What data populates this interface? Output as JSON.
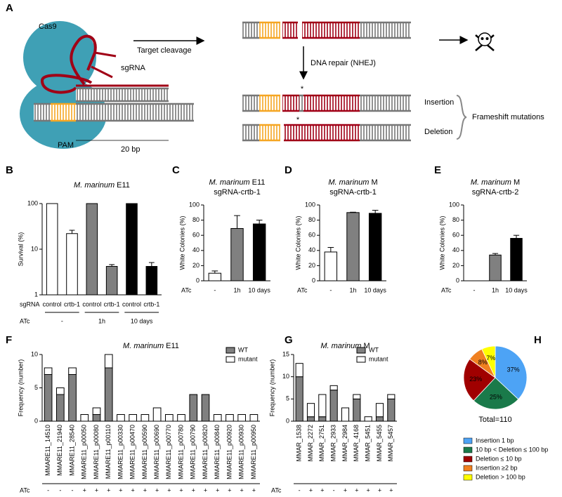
{
  "figure": {
    "panel": "A",
    "cas9": "Cas9",
    "sgrna": "sgRNA",
    "pam": "PAM",
    "length": "20 bp",
    "cleavage": "Target cleavage",
    "repair": "DNA repair (NHEJ)",
    "asterisk": "*",
    "insertion": "Insertion",
    "deletion": "Deletion",
    "mutations": "Frameshift mutations"
  },
  "chart_data": [
    {
      "panel": "B",
      "type": "bar",
      "organism": "M. marinum",
      "strain": "E11",
      "ylabel": "Survival (%)",
      "log_scale": true,
      "ylim": [
        1,
        100
      ],
      "yticks": [
        1,
        10,
        100
      ],
      "row_label": "sgRNA",
      "categories": [
        "control",
        "crtb-1",
        "control",
        "crtb-1",
        "control",
        "crtb-1"
      ],
      "values": [
        100,
        22,
        100,
        4.2,
        100,
        4.2
      ],
      "errors": [
        0,
        4,
        0,
        0.4,
        0,
        0.9
      ],
      "colors": [
        "#ffffff",
        "#ffffff",
        "#808080",
        "#808080",
        "#000000",
        "#000000"
      ],
      "groups_label": "ATc",
      "groups": [
        "-",
        "1h",
        "10 days"
      ]
    },
    {
      "panel": "C",
      "type": "bar",
      "organism": "M. marinum",
      "strain": "E11",
      "subtitle": "sgRNA-crtb-1",
      "ylabel": "White Colonies (%)",
      "ylim": [
        0,
        100
      ],
      "yticks": [
        0,
        20,
        40,
        60,
        80,
        100
      ],
      "row_label": "ATc",
      "categories": [
        "-",
        "1h",
        "10 days"
      ],
      "values": [
        10,
        69,
        75
      ],
      "errors": [
        3,
        17,
        5
      ],
      "colors": [
        "#ffffff",
        "#808080",
        "#000000"
      ]
    },
    {
      "panel": "D",
      "type": "bar",
      "organism": "M. marinum",
      "strain": "M",
      "subtitle": "sgRNA-crtb-1",
      "ylabel": "White Colonies (%)",
      "ylim": [
        0,
        100
      ],
      "yticks": [
        0,
        20,
        40,
        60,
        80,
        100
      ],
      "row_label": "ATc",
      "categories": [
        "-",
        "1h",
        "10 days"
      ],
      "values": [
        38,
        90,
        89
      ],
      "errors": [
        6,
        0.5,
        4
      ],
      "colors": [
        "#ffffff",
        "#808080",
        "#000000"
      ]
    },
    {
      "panel": "E",
      "type": "bar",
      "organism": "M. marinum",
      "strain": "M",
      "subtitle": "sgRNA-crtb-2",
      "ylabel": "White Colonies (%)",
      "ylim": [
        0,
        100
      ],
      "yticks": [
        0,
        20,
        40,
        60,
        80,
        100
      ],
      "row_label": "ATc",
      "categories": [
        "-",
        "1h",
        "10 days"
      ],
      "values": [
        0,
        34,
        56
      ],
      "errors": [
        0,
        2,
        4
      ],
      "colors": [
        "#ffffff",
        "#808080",
        "#000000"
      ]
    },
    {
      "panel": "F",
      "type": "stacked_bar",
      "organism": "M. marinum",
      "strain": "E11",
      "ylabel": "Frequency (number)",
      "ylim": [
        0,
        10
      ],
      "yticks": [
        0,
        5,
        10
      ],
      "categories": [
        "MMARE11_14510",
        "MMARE11_21940",
        "MMARE11_28540",
        "MMARE11_p00050",
        "MMARE11_p00080",
        "MMARE11_p00110",
        "MMARE11_p00330",
        "MMARE11_p00470",
        "MMARE11_p00590",
        "MMARE11_p00690",
        "MMARE11_p00770",
        "MMARE11_p00780",
        "MMARE11_p00790",
        "MMARE11_p00820",
        "MMARE11_p00840",
        "MMARE11_p00920",
        "MMARE11_p00930",
        "MMARE11_p00950"
      ],
      "series": [
        {
          "name": "WT",
          "color": "#808080",
          "values": [
            7,
            4,
            7,
            0,
            1,
            8,
            0,
            0,
            0,
            0,
            0,
            0,
            4,
            4,
            0,
            0,
            0,
            0
          ]
        },
        {
          "name": "mutant",
          "color": "#ffffff",
          "values": [
            1,
            1,
            1,
            1,
            1,
            2,
            1,
            1,
            1,
            2,
            1,
            1,
            0,
            0,
            1,
            1,
            1,
            1
          ]
        }
      ],
      "row_label": "ATc",
      "treatment": [
        "-",
        "-",
        "-",
        "+",
        "+",
        "+",
        "+",
        "+",
        "+",
        "+",
        "+",
        "+",
        "+",
        "+",
        "+",
        "+",
        "+",
        "+"
      ]
    },
    {
      "panel": "G",
      "type": "stacked_bar",
      "organism": "M. marinum",
      "strain": "M",
      "ylabel": "Frequency (number)",
      "ylim": [
        0,
        15
      ],
      "yticks": [
        0,
        5,
        10,
        15
      ],
      "categories": [
        "MMAR_1538",
        "MMAR_2272",
        "MMAR_2751",
        "MMAR_2933",
        "MMAR_2984",
        "MMAR_4168",
        "MMAR_5451",
        "MMAR_5455",
        "MMAR_5457"
      ],
      "series": [
        {
          "name": "WT",
          "color": "#808080",
          "values": [
            10,
            1,
            1,
            7,
            0,
            5,
            0,
            1,
            5
          ]
        },
        {
          "name": "mutant",
          "color": "#ffffff",
          "values": [
            3,
            3,
            5,
            1,
            3,
            1,
            1,
            3,
            1
          ]
        }
      ],
      "row_label": "ATc",
      "treatment": [
        "-",
        "+",
        "+",
        "-",
        "+",
        "+",
        "+",
        "+",
        "+"
      ]
    },
    {
      "panel": "H",
      "type": "pie",
      "categories": [
        "Insertion 1 bp",
        "10 bp < Deletion ≤ 100 bp",
        "Deletion ≤ 10 bp",
        "Insertion ≥2 bp",
        "Deletion > 100 bp"
      ],
      "values": [
        37,
        25,
        23,
        8,
        7
      ],
      "value_labels": [
        "37%",
        "25%",
        "23%",
        "8%",
        "7%"
      ],
      "colors": [
        "#4da3f5",
        "#1a7a4a",
        "#a00000",
        "#f08020",
        "#ffff00"
      ],
      "total": "Total=110"
    }
  ]
}
